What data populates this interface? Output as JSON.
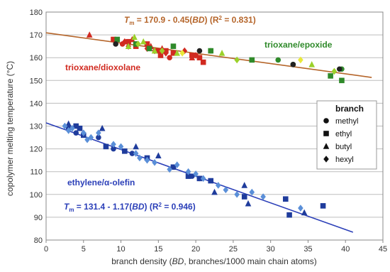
{
  "chart_data": {
    "type": "scatter",
    "xlabel": "branch density (BD, branches/1000 main chain atoms)",
    "ylabel": "copolymer melting temperature (°C)",
    "xlim": [
      0,
      45
    ],
    "ylim": [
      80,
      180
    ],
    "xticks": [
      "0",
      "5",
      "10",
      "15",
      "20",
      "25",
      "30",
      "35",
      "40",
      "45"
    ],
    "yticks": [
      "80",
      "90",
      "100",
      "110",
      "120",
      "130",
      "140",
      "150",
      "160",
      "170",
      "180"
    ],
    "grid": "horizontal",
    "legend": {
      "title": "branch",
      "placement": "right",
      "items": [
        {
          "label": "methyl",
          "marker": "circle"
        },
        {
          "label": "ethyl",
          "marker": "square"
        },
        {
          "label": "butyl",
          "marker": "triangle"
        },
        {
          "label": "hexyl",
          "marker": "diamond"
        }
      ]
    },
    "annotations": {
      "eq_top": {
        "prefix": "T",
        "sub": "m",
        "body": " = 170.9 - 0.45(",
        "italic": "BD",
        "tail": ")  (R",
        "sup": "2",
        "end": " = 0.831)"
      },
      "eq_bottom": {
        "prefix": "T",
        "sub": "m",
        "body": " = 131.4 - 1.17(",
        "italic": "BD",
        "tail": ")  (R",
        "sup": "2",
        "end": " = 0.946)"
      },
      "label_dioxolane": "trioxane/dioxolane",
      "label_epoxide": "trioxane/epoxide",
      "label_olefin": "ethylene/α-olefin"
    },
    "fits": [
      {
        "intercept": 170.9,
        "slope": -0.45,
        "x_range": [
          0,
          43.5
        ],
        "color": "#b5652a"
      },
      {
        "intercept": 131.4,
        "slope": -1.17,
        "x_range": [
          0,
          41
        ],
        "color": "#2b3fb8"
      }
    ],
    "colors": {
      "dioxolane": "#d12a20",
      "epoxide": "#2f8a2a",
      "epoxide_light": "#9bd12a",
      "olefin_dark": "#1f3c9c",
      "olefin_light": "#5a8fd8",
      "methyl_dark": "#222222",
      "yellow": "#e8e83a"
    },
    "series": [
      {
        "marker": "circle",
        "color": "dioxolane",
        "x": [
          10.2,
          12.0,
          16.5,
          20.0
        ],
        "y": [
          166,
          166,
          160,
          161
        ]
      },
      {
        "marker": "square",
        "color": "dioxolane",
        "x": [
          9.0,
          11.0,
          12.0,
          13.5,
          15.0,
          15.3,
          16.0,
          17.0,
          19.5,
          20.5,
          21.0
        ],
        "y": [
          168,
          167,
          165,
          166,
          163,
          161,
          163,
          162,
          161,
          160,
          158
        ]
      },
      {
        "marker": "triangle",
        "color": "dioxolane",
        "x": [
          5.8,
          11.5,
          14.0,
          15.5,
          19.5
        ],
        "y": [
          170,
          168,
          165,
          164,
          160
        ]
      },
      {
        "marker": "diamond",
        "color": "dioxolane",
        "x": [
          10.5,
          11.0,
          13.5,
          14.5,
          16.0,
          18.5,
          20.0
        ],
        "y": [
          167,
          165,
          164,
          163,
          162,
          163,
          161
        ]
      },
      {
        "marker": "circle",
        "color": "epoxide",
        "x": [
          22.0,
          31.0,
          33.0,
          39.5
        ],
        "y": [
          163,
          159,
          157,
          155
        ]
      },
      {
        "marker": "square",
        "color": "epoxide",
        "x": [
          9.5,
          12.0,
          13.8,
          17.0,
          22.0,
          27.5,
          38.0,
          39.5
        ],
        "y": [
          168,
          166,
          164,
          165,
          163,
          159,
          152,
          150
        ]
      },
      {
        "marker": "triangle",
        "color": "epoxide_light",
        "x": [
          11.0,
          11.8,
          13.0,
          14.5,
          17.5,
          23.5,
          35.5
        ],
        "y": [
          165,
          169,
          167,
          163,
          162,
          162,
          157
        ]
      },
      {
        "marker": "diamond",
        "color": "epoxide_light",
        "x": [
          12.3,
          15.5,
          25.5,
          38.5
        ],
        "y": [
          166,
          163,
          159,
          154
        ]
      },
      {
        "marker": "circle",
        "color": "methyl_dark",
        "x": [
          9.3,
          20.5,
          33.0,
          39.2
        ],
        "y": [
          166,
          163,
          157,
          155
        ]
      },
      {
        "marker": "diamond",
        "color": "yellow",
        "x": [
          18.2,
          34.0
        ],
        "y": [
          162,
          159
        ]
      },
      {
        "marker": "circle",
        "color": "olefin_dark",
        "x": [
          3.0,
          4.0,
          7.0,
          9.0,
          11.5,
          19.5,
          20.5
        ],
        "y": [
          129,
          127,
          125,
          120,
          118,
          108,
          107
        ]
      },
      {
        "marker": "square",
        "color": "olefin_dark",
        "x": [
          4.0,
          4.5,
          5.0,
          8.0,
          10.5,
          13.5,
          17.0,
          19.0,
          20.5,
          22.0,
          26.5,
          32.0,
          32.5,
          37.0
        ],
        "y": [
          130,
          129,
          126,
          121,
          119,
          116,
          112,
          108,
          107,
          106,
          99,
          98,
          91,
          95
        ]
      },
      {
        "marker": "triangle",
        "color": "olefin_dark",
        "x": [
          3.0,
          7.5,
          12.0,
          15.0,
          22.5,
          26.5,
          27.0,
          34.5
        ],
        "y": [
          131,
          129,
          121,
          117,
          101,
          104,
          96,
          92
        ]
      },
      {
        "marker": "diamond",
        "color": "olefin_light",
        "x": [
          2.5,
          3.0,
          3.5,
          5.0,
          5.5,
          6.0,
          7.0,
          9.0,
          10.0,
          12.0,
          12.5,
          13.5,
          14.5,
          16.5,
          17.5,
          19.0,
          20.0,
          21.0,
          23.0,
          24.0,
          25.5,
          27.5,
          29.0,
          34.0
        ],
        "y": [
          130,
          128,
          129,
          127,
          124,
          125,
          127,
          122,
          121,
          118,
          116,
          115,
          114,
          111,
          113,
          110,
          109,
          107,
          104,
          102,
          100,
          101,
          99,
          94
        ]
      }
    ]
  }
}
